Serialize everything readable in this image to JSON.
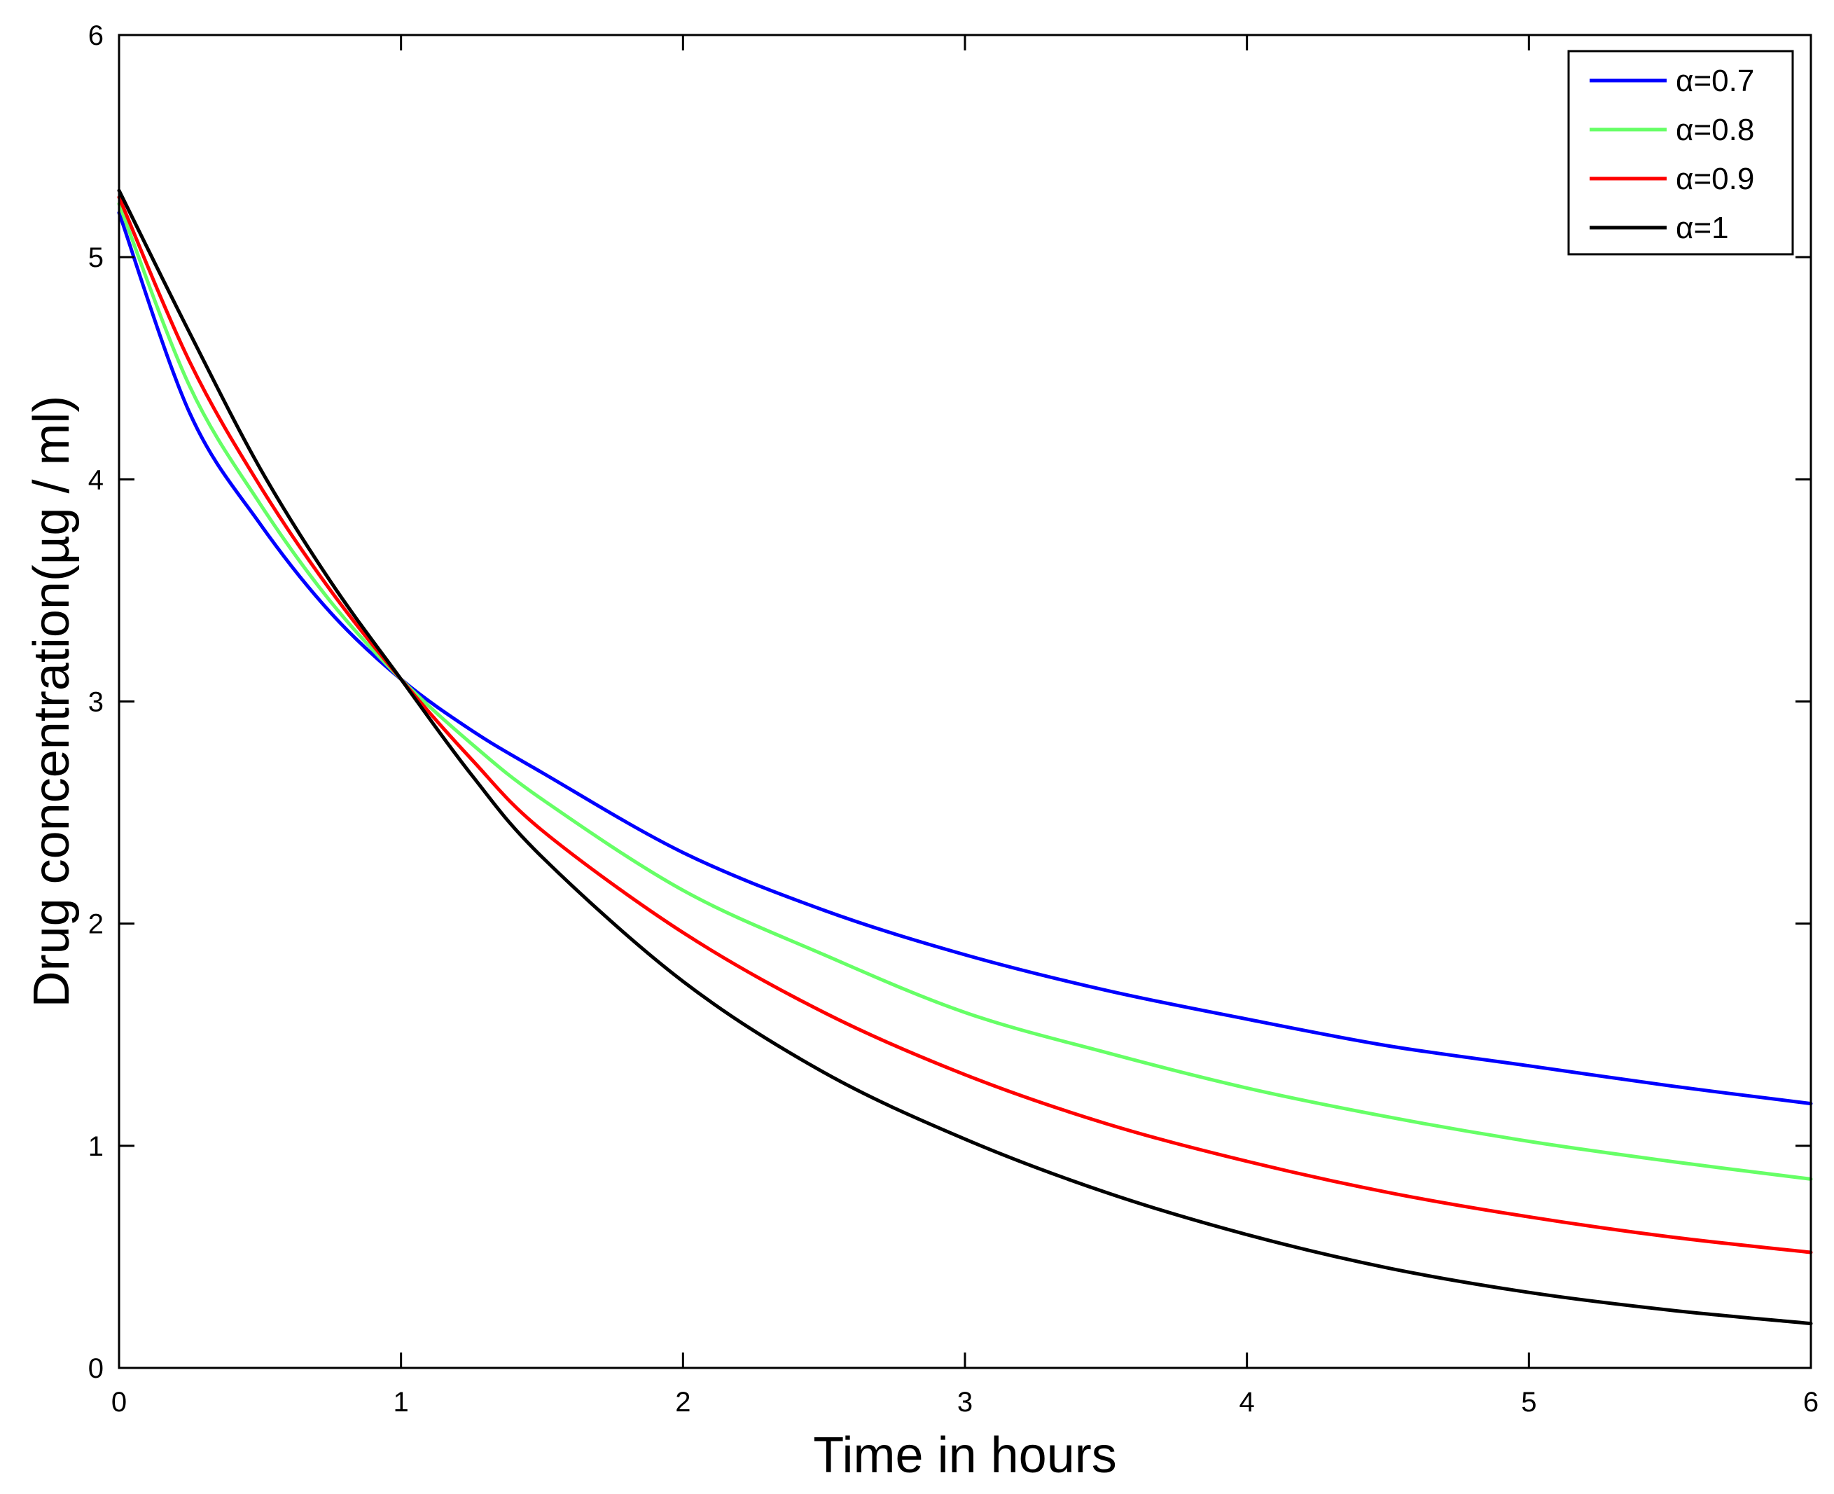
{
  "chart_data": {
    "type": "line",
    "title": "",
    "xlabel": "Time in hours",
    "ylabel": "Drug concentration(µg / ml)",
    "xlim": [
      0,
      6
    ],
    "ylim": [
      0,
      6
    ],
    "xticks": [
      "0",
      "1",
      "2",
      "3",
      "4",
      "5",
      "6"
    ],
    "yticks": [
      "0",
      "1",
      "2",
      "3",
      "4",
      "5",
      "6"
    ],
    "grid": false,
    "legend_position": "top-right",
    "x": [
      0,
      0.25,
      0.5,
      0.75,
      1,
      1.25,
      1.5,
      2,
      2.5,
      3,
      3.5,
      4,
      4.5,
      5,
      5.5,
      6
    ],
    "series": [
      {
        "name": "α=0.7",
        "color": "#0000ff",
        "values": [
          5.2,
          4.3,
          3.8,
          3.4,
          3.1,
          2.87,
          2.68,
          2.32,
          2.06,
          1.86,
          1.7,
          1.57,
          1.45,
          1.36,
          1.27,
          1.19
        ]
      },
      {
        "name": "α=0.8",
        "color": "#66ff66",
        "values": [
          5.24,
          4.42,
          3.89,
          3.45,
          3.1,
          2.81,
          2.56,
          2.15,
          1.86,
          1.6,
          1.42,
          1.26,
          1.13,
          1.02,
          0.93,
          0.85
        ]
      },
      {
        "name": "α=0.9",
        "color": "#ff0000",
        "values": [
          5.27,
          4.53,
          3.97,
          3.5,
          3.1,
          2.74,
          2.42,
          1.96,
          1.6,
          1.32,
          1.1,
          0.93,
          0.79,
          0.68,
          0.59,
          0.52
        ]
      },
      {
        "name": "α=1",
        "color": "#000000",
        "values": [
          5.3,
          4.66,
          4.05,
          3.54,
          3.1,
          2.67,
          2.3,
          1.74,
          1.33,
          1.03,
          0.79,
          0.6,
          0.45,
          0.34,
          0.26,
          0.2
        ]
      }
    ]
  }
}
